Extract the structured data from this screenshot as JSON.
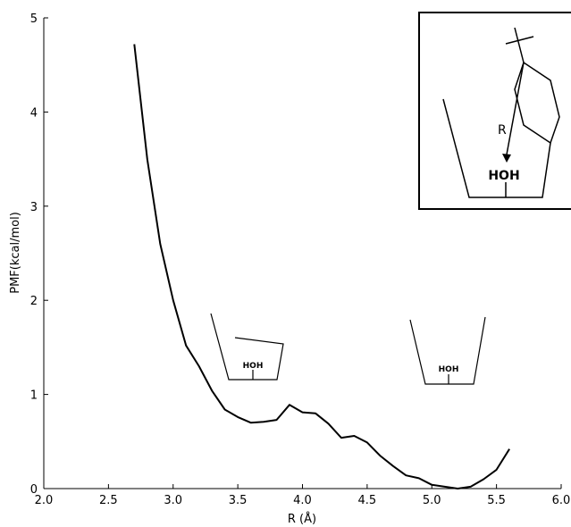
{
  "chart_data": {
    "type": "line",
    "title": "",
    "xlabel": "R (Å)",
    "ylabel": "PMF(kcal/mol)",
    "xlim": [
      2.0,
      6.0
    ],
    "ylim": [
      0,
      5
    ],
    "x_ticks": [
      2.0,
      2.5,
      3.0,
      3.5,
      4.0,
      4.5,
      5.0,
      5.5,
      6.0
    ],
    "x_tick_labels": [
      "2.0",
      "2.5",
      "3.0",
      "3.5",
      "4.0",
      "4.5",
      "5.0",
      "5.5",
      "6.0"
    ],
    "y_ticks": [
      0,
      1,
      2,
      3,
      4,
      5
    ],
    "y_tick_labels": [
      "0",
      "1",
      "2",
      "3",
      "4",
      "5"
    ],
    "grid": false,
    "series": [
      {
        "color": "#000000",
        "x": [
          2.7,
          2.8,
          2.9,
          3.0,
          3.1,
          3.2,
          3.3,
          3.4,
          3.5,
          3.6,
          3.7,
          3.8,
          3.9,
          4.0,
          4.1,
          4.2,
          4.3,
          4.4,
          4.5,
          4.6,
          4.7,
          4.8,
          4.9,
          5.0,
          5.1,
          5.2,
          5.3,
          5.4,
          5.5,
          5.6
        ],
        "y": [
          4.72,
          3.5,
          2.6,
          2.0,
          1.52,
          1.3,
          1.04,
          0.84,
          0.76,
          0.7,
          0.71,
          0.73,
          0.89,
          0.81,
          0.8,
          0.69,
          0.54,
          0.56,
          0.49,
          0.35,
          0.24,
          0.14,
          0.11,
          0.04,
          0.02,
          0.0,
          0.02,
          0.1,
          0.2,
          0.42
        ]
      }
    ],
    "annotations": {
      "left_sketch_label": "HOH",
      "right_sketch_label": "HOH",
      "inset_arrow_label": "R",
      "inset_water_label": "HOH"
    }
  }
}
